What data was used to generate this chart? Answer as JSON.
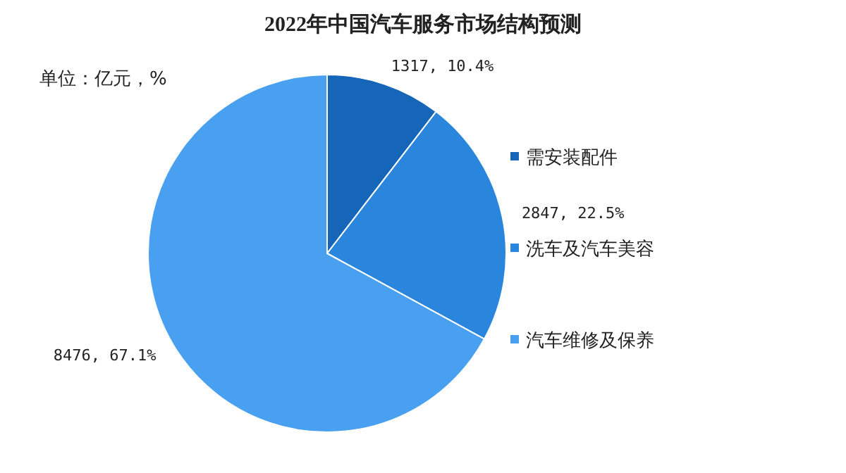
{
  "chart_data": {
    "type": "pie",
    "title": "2022年中国汽车服务市场结构预测",
    "annotations": [
      "单位：亿元，%"
    ],
    "categories": [
      "需安装配件",
      "洗车及汽车美容",
      "汽车维修及保养"
    ],
    "values": [
      1317,
      2847,
      8476
    ],
    "value_labels": [
      "1317, 10.4%",
      "2847, 22.5%",
      "8476, 67.1%"
    ],
    "colors": [
      "#1565b8",
      "#2a86dc",
      "#4aa0f0"
    ],
    "legend": "right"
  }
}
